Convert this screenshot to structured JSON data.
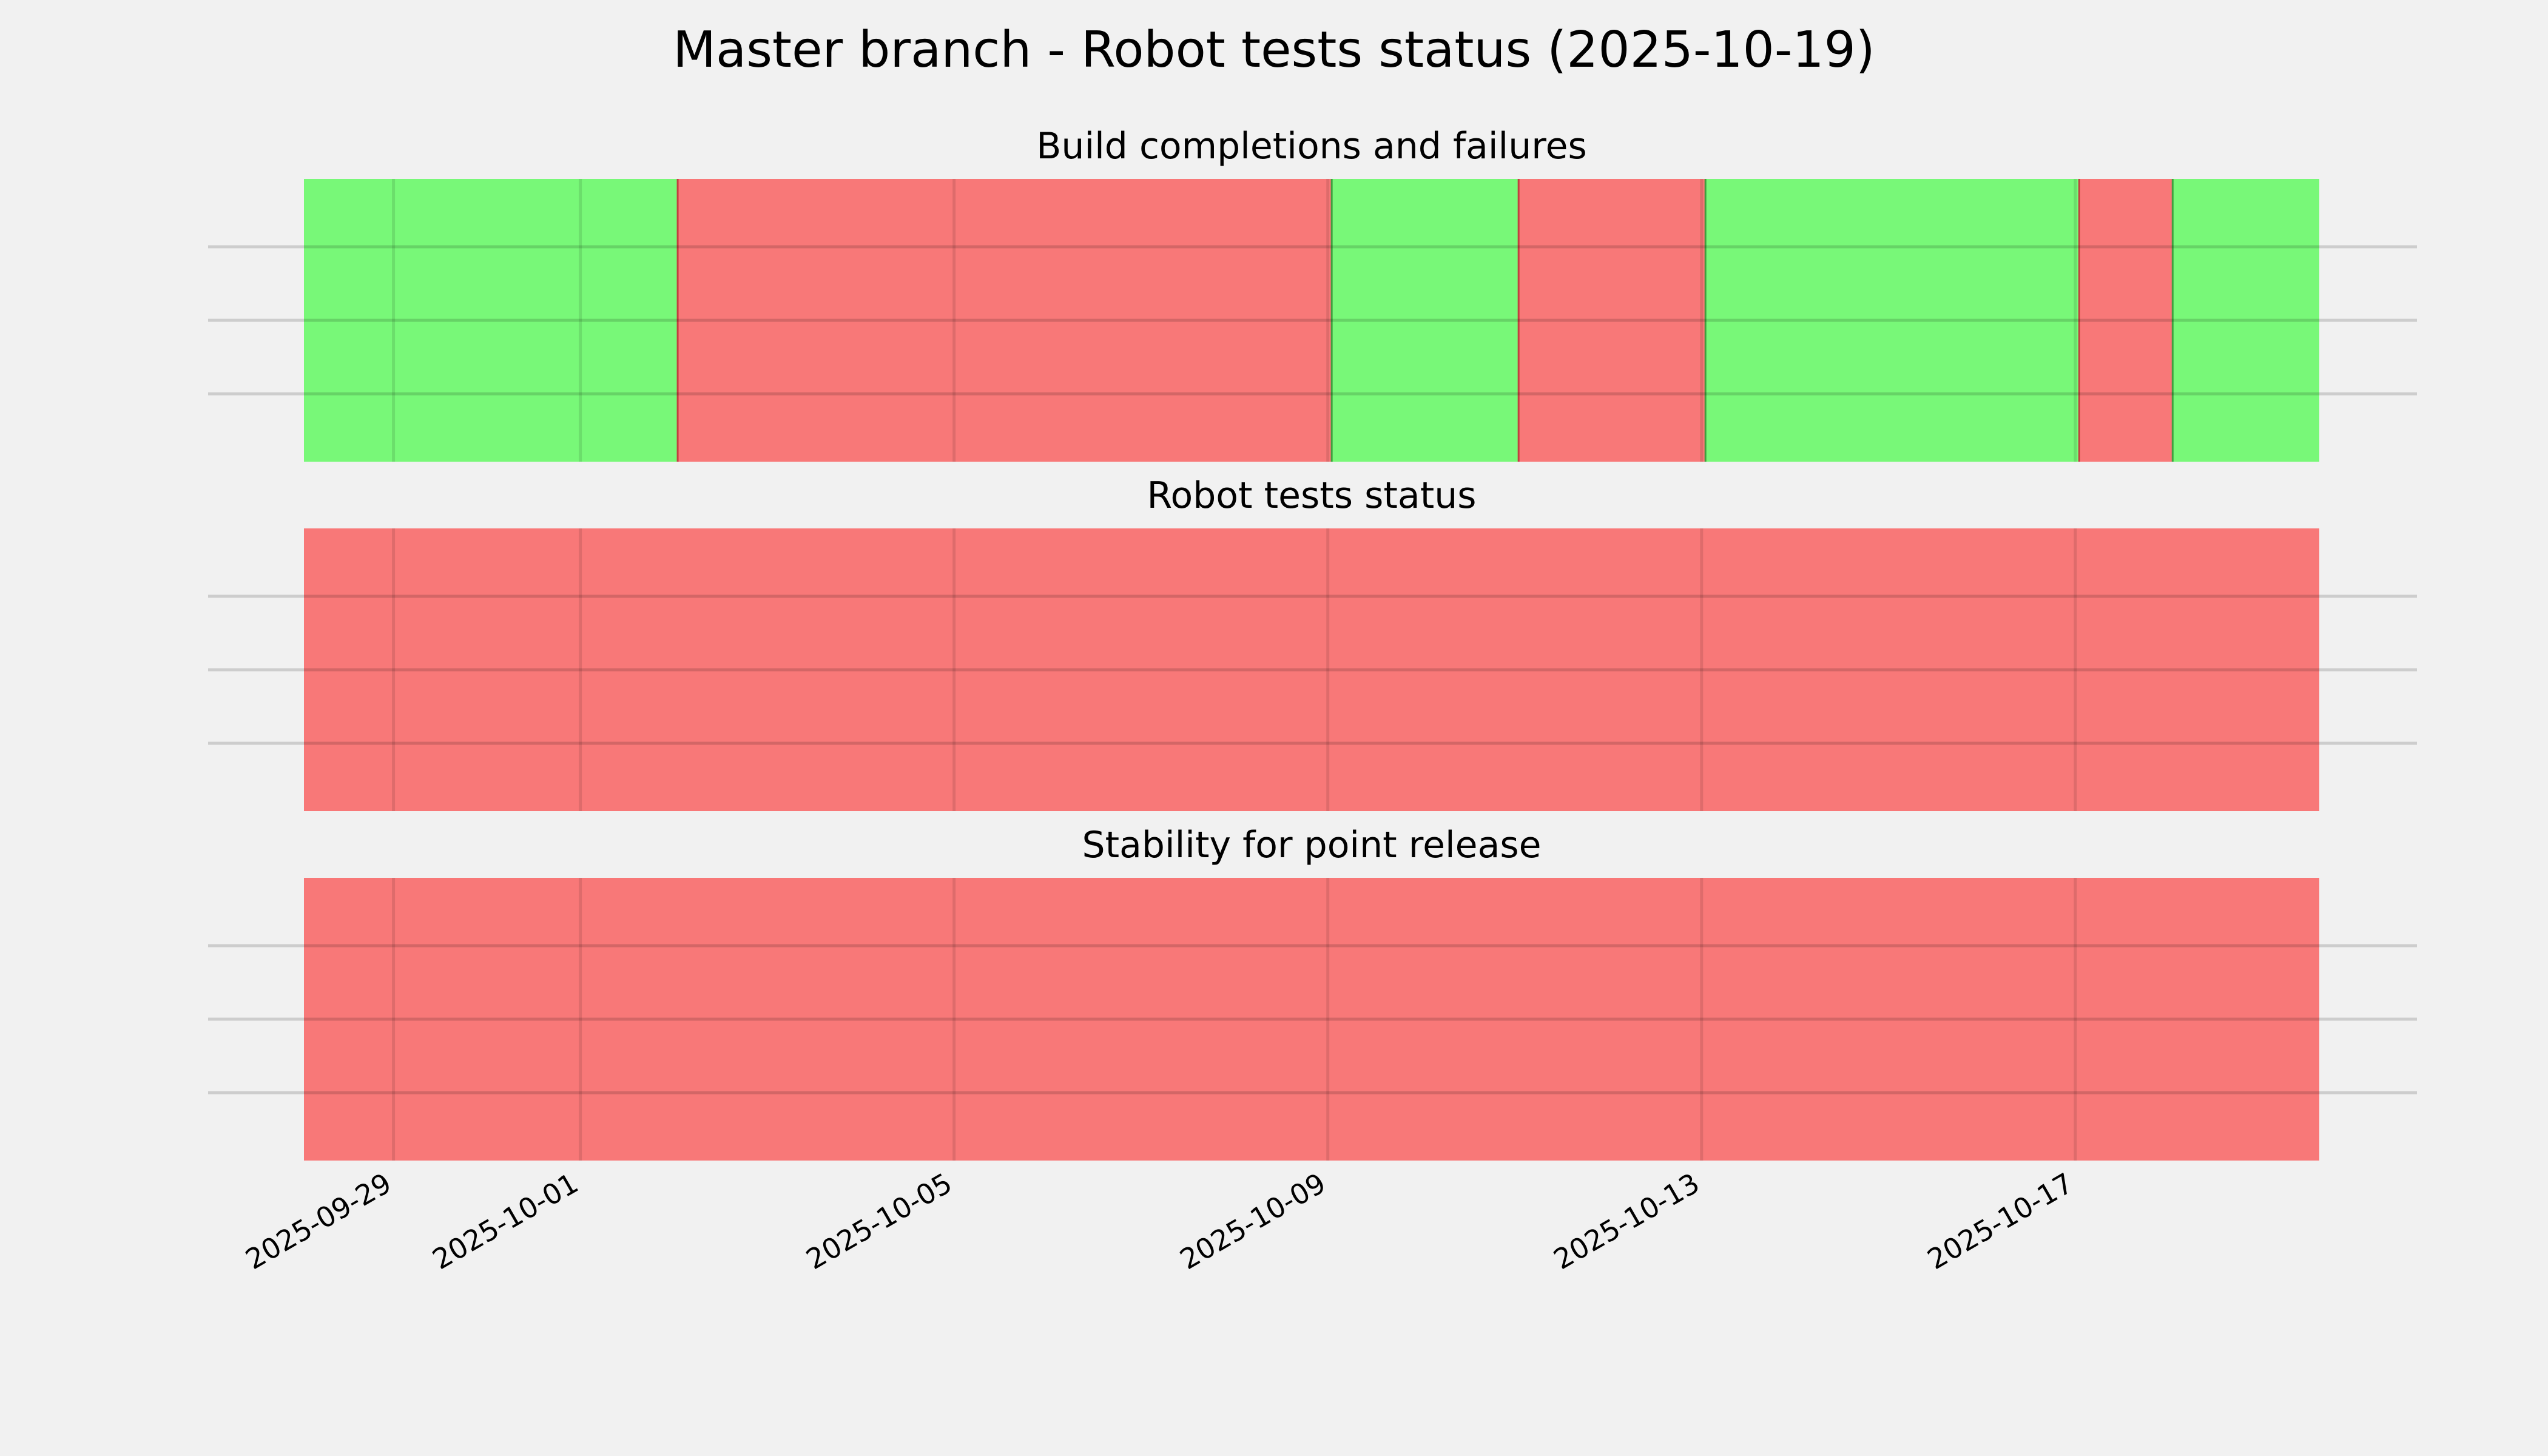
{
  "chart_data": {
    "type": "timeline",
    "title": "Master branch - Robot tests status (2025-10-19)",
    "xlim": [
      "2025-09-28T01:00",
      "2025-10-19T14:40"
    ],
    "x_ticks": [
      "2025-09-29",
      "2025-10-01",
      "2025-10-05",
      "2025-10-09",
      "2025-10-13",
      "2025-10-17"
    ],
    "grid": true,
    "colors": {
      "pass": "#78f878",
      "fail": "#f87878",
      "background": "#f1f1f1"
    },
    "panels": [
      {
        "title": "Build completions and failures",
        "segments": [
          {
            "start": "2025-09-28T01:00",
            "end": "2025-10-02T01:00",
            "status": "pass"
          },
          {
            "start": "2025-10-02T01:00",
            "end": "2025-10-09T01:00",
            "status": "fail"
          },
          {
            "start": "2025-10-09T01:00",
            "end": "2025-10-11T01:00",
            "status": "pass"
          },
          {
            "start": "2025-10-11T01:00",
            "end": "2025-10-13T01:00",
            "status": "fail"
          },
          {
            "start": "2025-10-13T01:00",
            "end": "2025-10-17T01:00",
            "status": "pass"
          },
          {
            "start": "2025-10-17T01:00",
            "end": "2025-10-18T01:00",
            "status": "fail"
          },
          {
            "start": "2025-10-18T01:00",
            "end": "2025-10-19T14:40",
            "status": "pass"
          }
        ]
      },
      {
        "title": "Robot tests status",
        "segments": [
          {
            "start": "2025-09-28T01:00",
            "end": "2025-10-19T14:40",
            "status": "fail"
          }
        ]
      },
      {
        "title": "Stability for point release",
        "segments": [
          {
            "start": "2025-09-28T01:00",
            "end": "2025-10-19T14:40",
            "status": "fail"
          }
        ]
      }
    ]
  }
}
